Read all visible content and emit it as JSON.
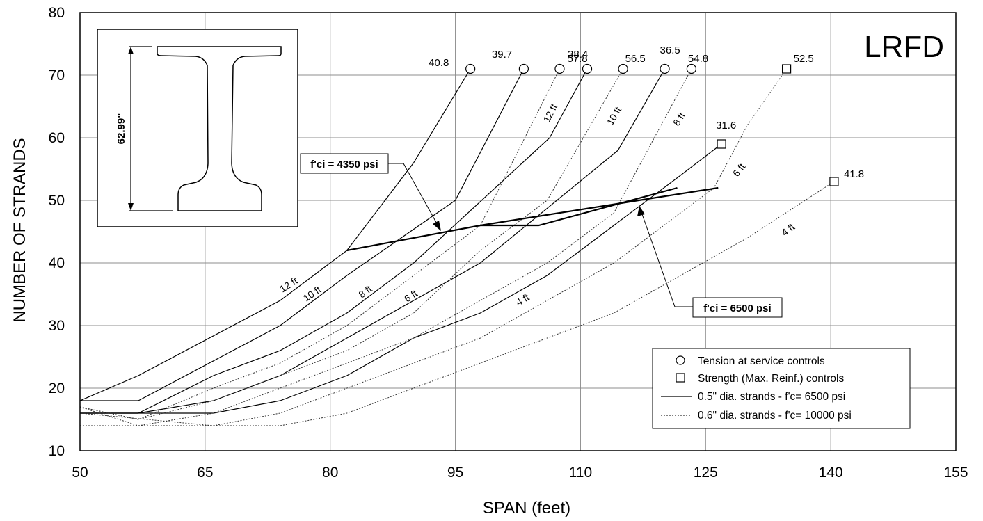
{
  "chart_data": {
    "type": "line",
    "title": "LRFD",
    "xlabel": "SPAN (feet)",
    "ylabel": "NUMBER OF STRANDS",
    "xlim": [
      50,
      155
    ],
    "ylim": [
      10,
      80
    ],
    "xticks": [
      50,
      65,
      80,
      95,
      110,
      125,
      140,
      155
    ],
    "yticks": [
      10,
      20,
      30,
      40,
      50,
      60,
      70,
      80
    ],
    "grid": true,
    "legend_position": "bottom-right",
    "legend": [
      {
        "marker": "circle",
        "label": "Tension at service controls"
      },
      {
        "marker": "square",
        "label": "Strength (Max. Reinf.) controls"
      },
      {
        "style": "solid",
        "label": "0.5\" dia. strands - f'c= 6500 psi"
      },
      {
        "style": "dotted",
        "label": "0.6\" dia. strands - f'c= 10000 psi"
      }
    ],
    "series": [
      {
        "spacing": "12 ft",
        "strand": "0.5\" dia.",
        "style": "solid",
        "label": "12 ft",
        "x": [
          50,
          57,
          74,
          82,
          90,
          96.8
        ],
        "y": [
          18,
          22,
          34,
          42,
          56,
          71
        ],
        "end_marker": "circle",
        "end_label": "40.8"
      },
      {
        "spacing": "10 ft",
        "strand": "0.5\" dia.",
        "style": "solid",
        "label": "10 ft",
        "x": [
          50,
          57,
          74,
          82,
          95,
          103.2
        ],
        "y": [
          18,
          18,
          30,
          38,
          50,
          71
        ],
        "end_marker": "circle",
        "end_label": "39.7"
      },
      {
        "spacing": "8 ft",
        "strand": "0.5\" dia.",
        "style": "solid",
        "label": "8 ft",
        "x": [
          50,
          57,
          66,
          74,
          82,
          90,
          106.3,
          110.8
        ],
        "y": [
          16,
          16,
          22,
          26,
          32,
          40,
          60,
          71
        ],
        "end_marker": "circle",
        "end_label": "38.4"
      },
      {
        "spacing": "6 ft",
        "strand": "0.5\" dia.",
        "style": "solid",
        "label": "6 ft",
        "x": [
          50,
          57,
          66,
          74,
          82,
          98,
          114.5,
          120.1
        ],
        "y": [
          16,
          16,
          18,
          22,
          28,
          40,
          58,
          71
        ],
        "end_marker": "circle",
        "end_label": "36.5"
      },
      {
        "spacing": "4 ft",
        "strand": "0.5\" dia.",
        "style": "solid",
        "label": "4 ft",
        "x": [
          50,
          66,
          74,
          82,
          90,
          98,
          106,
          114,
          122,
          126.9
        ],
        "y": [
          16,
          16,
          18,
          22,
          28,
          32,
          38,
          46,
          54,
          59
        ],
        "end_marker": "square",
        "end_label": "31.6"
      },
      {
        "spacing": "12 ft",
        "strand": "0.6\" dia.",
        "style": "dotted",
        "label": "12 ft",
        "x": [
          50,
          57,
          66,
          74,
          82,
          90,
          98,
          107.5
        ],
        "y": [
          17,
          15,
          20,
          24,
          30,
          38,
          46,
          71
        ],
        "end_marker": "circle",
        "end_label": "57.8"
      },
      {
        "spacing": "10 ft",
        "strand": "0.6\" dia.",
        "style": "dotted",
        "label": "10 ft",
        "x": [
          50,
          57,
          66,
          74,
          82,
          90,
          98,
          106,
          115.1
        ],
        "y": [
          17,
          15,
          18,
          22,
          26,
          32,
          42,
          50,
          71
        ],
        "end_marker": "circle",
        "end_label": "56.5"
      },
      {
        "spacing": "8 ft",
        "strand": "0.6\" dia.",
        "style": "dotted",
        "label": "8 ft",
        "x": [
          50,
          57,
          66,
          74,
          82,
          90,
          98,
          106,
          114,
          123.3
        ],
        "y": [
          17,
          14,
          16,
          20,
          24,
          28,
          34,
          40,
          48,
          71
        ],
        "end_marker": "circle",
        "end_label": "54.8"
      },
      {
        "spacing": "6 ft",
        "strand": "0.6\" dia.",
        "style": "dotted",
        "label": "6 ft",
        "x": [
          50,
          66,
          74,
          82,
          90,
          98,
          106,
          114,
          122,
          126,
          130,
          134.7
        ],
        "y": [
          16,
          14,
          16,
          20,
          24,
          28,
          34,
          40,
          48,
          52,
          62,
          71
        ],
        "end_marker": "square",
        "end_label": "52.5"
      },
      {
        "spacing": "4 ft",
        "strand": "0.6\" dia.",
        "style": "dotted",
        "label": "4 ft",
        "x": [
          50,
          74,
          82,
          90,
          98,
          106,
          114,
          122,
          130,
          140.4
        ],
        "y": [
          14,
          14,
          16,
          20,
          24,
          28,
          32,
          38,
          44,
          53
        ],
        "end_marker": "square",
        "end_label": "41.8"
      },
      {
        "spacing": "limit",
        "strand": "f'ci = 4350 psi",
        "style": "solid-heavy",
        "label": "",
        "x": [
          82,
          98,
          105,
          121.6
        ],
        "y": [
          42,
          46,
          46,
          52
        ]
      },
      {
        "spacing": "limit",
        "strand": "f'ci = 6500 psi",
        "style": "solid-heavy",
        "label": "",
        "x": [
          98,
          126.5
        ],
        "y": [
          46,
          52
        ]
      }
    ],
    "callouts": [
      {
        "text": "f'ci = 4350 psi"
      },
      {
        "text": "f'ci = 6500 psi"
      }
    ],
    "inset": {
      "dimension": "62.99\""
    }
  }
}
